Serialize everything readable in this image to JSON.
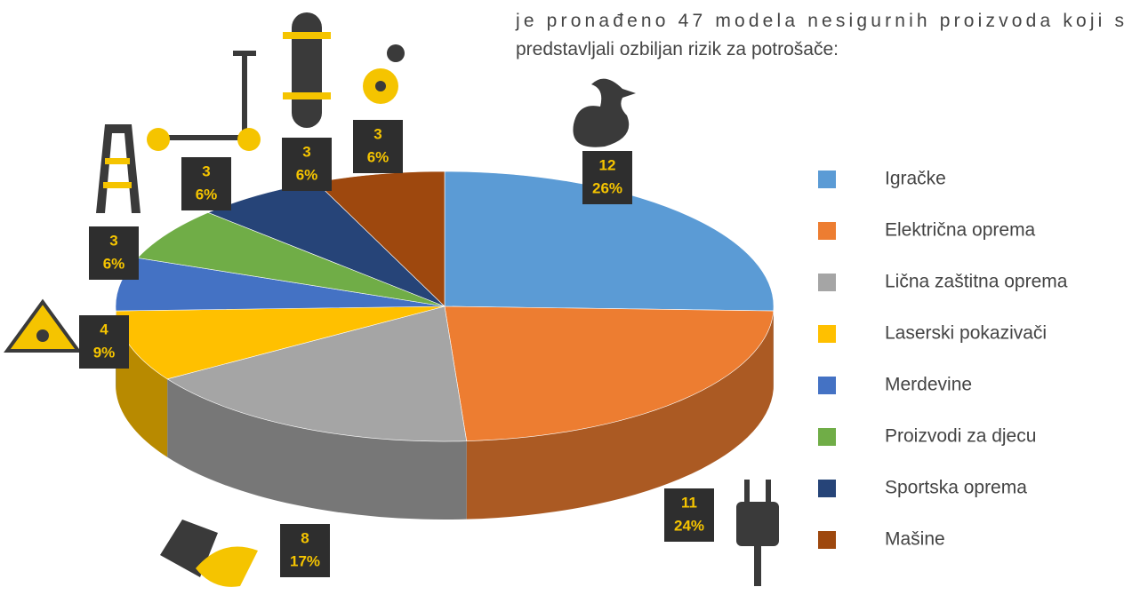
{
  "intro_lines": [
    "je pronađeno 47 modela nesigurnih proizvoda koji s",
    "predstavljali ozbiljan rizik za potrošače:"
  ],
  "chart_data": {
    "type": "pie",
    "categories": [
      "Igračke",
      "Električna oprema",
      "Lična zaštitna oprema",
      "Laserski pokazivači",
      "Merdevine",
      "Proizvodi za djecu",
      "Sportska oprema",
      "Mašine"
    ],
    "values": [
      12,
      11,
      8,
      4,
      3,
      3,
      3,
      3
    ],
    "percent_labels": [
      "26%",
      "24%",
      "17%",
      "9%",
      "6%",
      "6%",
      "6%",
      "6%"
    ],
    "colors": [
      "#5b9bd5",
      "#ed7d31",
      "#a5a5a5",
      "#ffc000",
      "#4472c4",
      "#70ad47",
      "#264478",
      "#9e480e"
    ],
    "legend": "right"
  }
}
